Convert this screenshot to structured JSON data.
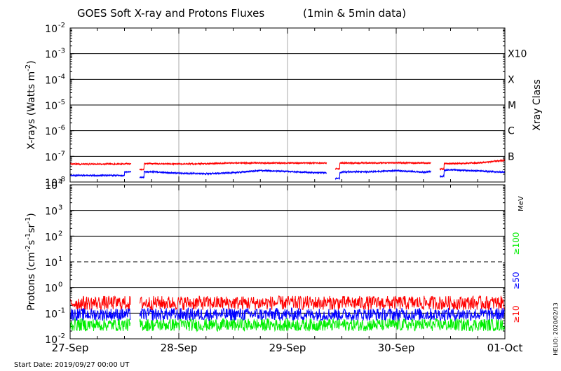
{
  "title": "GOES Soft X-ray and Protons Fluxes",
  "subtitle": "(1min & 5min data)",
  "start_date": "Start Date: 2019/09/27 00:00 UT",
  "credit": "HELIO: 2020/02/13",
  "x_tick_labels": [
    "27-Sep",
    "28-Sep",
    "29-Sep",
    "30-Sep",
    "01-Oct"
  ],
  "xray_panel": {
    "ylabel_prefix": "X-rays (Watts m",
    "ylabel_exp": "-2",
    "ylabel_suffix": ")",
    "right_title": "Xray Class",
    "y_ticks": [
      {
        "base": "10",
        "exp": "-2"
      },
      {
        "base": "10",
        "exp": "-3"
      },
      {
        "base": "10",
        "exp": "-4"
      },
      {
        "base": "10",
        "exp": "-5"
      },
      {
        "base": "10",
        "exp": "-6"
      },
      {
        "base": "10",
        "exp": "-7"
      },
      {
        "base": "10",
        "exp": "-8"
      }
    ],
    "class_labels": [
      "X10",
      "X",
      "M",
      "C",
      "B"
    ]
  },
  "proton_panel": {
    "ylabel_a": "Protons (cm",
    "ylabel_e1": "-2",
    "ylabel_b": "s",
    "ylabel_e2": "-1",
    "ylabel_c": "sr",
    "ylabel_e3": "-1",
    "ylabel_d": ")",
    "y_ticks": [
      {
        "base": "10",
        "exp": "4"
      },
      {
        "base": "10",
        "exp": "3"
      },
      {
        "base": "10",
        "exp": "2"
      },
      {
        "base": "10",
        "exp": "1"
      },
      {
        "base": "10",
        "exp": "0"
      },
      {
        "base": "10",
        "exp": "-1"
      },
      {
        "base": "10",
        "exp": "-2"
      }
    ],
    "unit": "MeV",
    "energy_labels": [
      {
        "text": "≥100",
        "color": "#00ee00"
      },
      {
        "text": "≥50",
        "color": "#0000ff"
      },
      {
        "text": "≥10",
        "color": "#ff0000"
      }
    ]
  },
  "chart_data": [
    {
      "type": "line",
      "panel": "xray",
      "x_range": [
        "2019-09-27",
        "2019-10-01"
      ],
      "ylim": [
        1e-08,
        0.01
      ],
      "log_y": true,
      "grid": "horizontal at each decade, vertical at each day",
      "series": [
        {
          "color": "#ff0000",
          "x": [
            "09-27 00:00",
            "09-27 06:00",
            "09-27 12:00",
            "09-27 18:00",
            "09-28 00:00",
            "09-28 06:00",
            "09-28 12:00",
            "09-28 18:00",
            "09-29 00:00",
            "09-29 06:00",
            "09-29 12:00",
            "09-29 18:00",
            "09-30 00:00",
            "09-30 06:00",
            "09-30 12:00",
            "09-30 18:00",
            "10-01 00:00"
          ],
          "y": [
            5e-08,
            5e-08,
            null,
            5.2e-08,
            5e-08,
            5.2e-08,
            5.5e-08,
            5.5e-08,
            5.5e-08,
            5.5e-08,
            null,
            5.5e-08,
            5.6e-08,
            5.5e-08,
            5.2e-08,
            5.5e-08,
            7e-08
          ]
        },
        {
          "color": "#0000ff",
          "x": [
            "09-27 00:00",
            "09-27 06:00",
            "09-27 12:00",
            "09-27 18:00",
            "09-28 00:00",
            "09-28 06:00",
            "09-28 12:00",
            "09-28 18:00",
            "09-29 00:00",
            "09-29 06:00",
            "09-29 12:00",
            "09-29 18:00",
            "09-30 00:00",
            "09-30 06:00",
            "09-30 12:00",
            "09-30 18:00",
            "10-01 00:00"
          ],
          "y": [
            1.8e-08,
            1.8e-08,
            null,
            2.5e-08,
            2.2e-08,
            2.1e-08,
            2.3e-08,
            2.8e-08,
            2.6e-08,
            2.3e-08,
            null,
            2.5e-08,
            2.8e-08,
            2.4e-08,
            3e-08,
            2.7e-08,
            2.4e-08
          ]
        }
      ]
    },
    {
      "type": "line",
      "panel": "protons",
      "x_range": [
        "2019-09-27",
        "2019-10-01"
      ],
      "ylim": [
        0.01,
        10000
      ],
      "log_y": true,
      "grid": "horizontal at each decade, vertical at each day",
      "threshold_line": 10,
      "series": [
        {
          "color": "#ff0000",
          "x": [
            "09-27 00:00",
            "10-01 00:00"
          ],
          "y": [
            0.25,
            0.25
          ]
        },
        {
          "color": "#0000ff",
          "x": [
            "09-27 00:00",
            "10-01 00:00"
          ],
          "y": [
            0.09,
            0.09
          ]
        },
        {
          "color": "#00ee00",
          "x": [
            "09-27 00:00",
            "10-01 00:00"
          ],
          "y": [
            0.035,
            0.035
          ]
        }
      ]
    }
  ]
}
